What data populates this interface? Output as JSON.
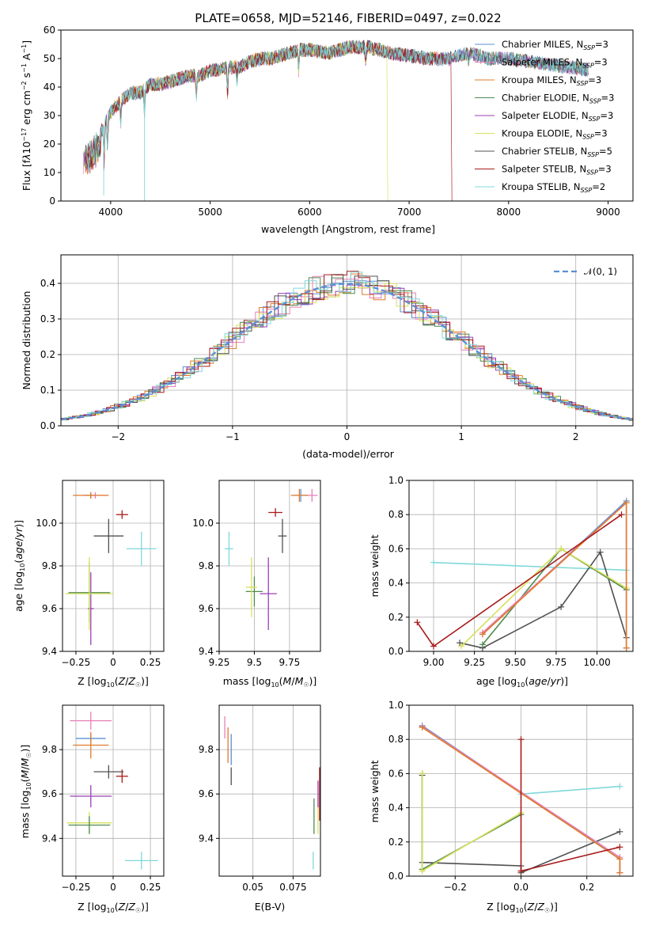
{
  "colors": {
    "chabrier_miles": "#5b8fd6",
    "salpeter_miles": "#e87fb8",
    "kroupa_miles": "#e07b2a",
    "chabrier_elodie": "#4f8a4f",
    "salpeter_elodie": "#9a3fb5",
    "kroupa_elodie": "#d8e05a",
    "chabrier_stelib": "#505050",
    "salpeter_stelib": "#a81a1a",
    "kroupa_stelib": "#80d8da",
    "normal": "#5b8fd6"
  },
  "chart_data": [
    {
      "type": "line",
      "title": "PLATE=0658, MJD=52146, FIBERID=0497, z=0.022",
      "xlabel": "wavelength [Angstrom, rest frame]",
      "ylabel": "Flux [f_λ 10^-17 erg cm^-2 s^-1 A^-1]",
      "xlim": [
        3500,
        9250
      ],
      "ylim": [
        0,
        60
      ],
      "xticks": [
        4000,
        5000,
        6000,
        7000,
        8000,
        9000
      ],
      "yticks": [
        0,
        10,
        20,
        30,
        40,
        50,
        60
      ],
      "legend_position": "top-right",
      "spectrum_anchor": {
        "x": [
          3720,
          3800,
          3850,
          3900,
          3950,
          4000,
          4100,
          4200,
          4300,
          4400,
          4500,
          4600,
          4700,
          4800,
          4900,
          5000,
          5100,
          5200,
          5300,
          5400,
          5500,
          5600,
          5700,
          5800,
          5900,
          6000,
          6200,
          6400,
          6600,
          6800,
          7000,
          7200,
          7400,
          7600,
          7800,
          8000,
          8200,
          8400,
          8600,
          8800
        ],
        "y": [
          17,
          20,
          22,
          24,
          28,
          31,
          35,
          38,
          38,
          41,
          41,
          42,
          43,
          44,
          44,
          46,
          46,
          47,
          47,
          49,
          50,
          50,
          51,
          52,
          53,
          53,
          52,
          54,
          54,
          52,
          51,
          50,
          50,
          52,
          50,
          50,
          49,
          48,
          47,
          46
        ]
      },
      "series": [
        {
          "name": "Chabrier MILES, N",
          "sub": "SSP",
          "suffix": "=3",
          "color_key": "chabrier_miles"
        },
        {
          "name": "Salpeter MILES, N",
          "sub": "SSP",
          "suffix": "=3",
          "color_key": "salpeter_miles"
        },
        {
          "name": "Kroupa MILES, N",
          "sub": "SSP",
          "suffix": "=3",
          "color_key": "kroupa_miles"
        },
        {
          "name": "Chabrier ELODIE, N",
          "sub": "SSP",
          "suffix": "=3",
          "color_key": "chabrier_elodie"
        },
        {
          "name": "Salpeter ELODIE, N",
          "sub": "SSP",
          "suffix": "=3",
          "color_key": "salpeter_elodie"
        },
        {
          "name": "Kroupa ELODIE, N",
          "sub": "SSP",
          "suffix": "=3",
          "color_key": "kroupa_elodie"
        },
        {
          "name": "Chabrier STELIB, N",
          "sub": "SSP",
          "suffix": "=5",
          "color_key": "chabrier_stelib"
        },
        {
          "name": "Salpeter STELIB, N",
          "sub": "SSP",
          "suffix": "=3",
          "color_key": "salpeter_stelib"
        },
        {
          "name": "Kroupa STELIB, N",
          "sub": "SSP",
          "suffix": "=2",
          "color_key": "kroupa_stelib"
        }
      ]
    },
    {
      "type": "histogram",
      "xlabel": "(data-model)/error",
      "ylabel": "Normed distribution",
      "xlim": [
        -2.5,
        2.5
      ],
      "ylim": [
        0,
        0.48
      ],
      "xticks": [
        -2,
        -1,
        0,
        1,
        2
      ],
      "yticks": [
        0.0,
        0.1,
        0.2,
        0.3,
        0.4
      ],
      "grid": true,
      "legend": "𝒩(0, 1)",
      "legend_position": "top-right",
      "bin_width": 0.1,
      "reference_curve": "normal(0,1)"
    },
    {
      "type": "errorbar",
      "xlabel": "Z [log10(Z/Z☉)]",
      "ylabel": "age [log10(age/yr)]",
      "xlim": [
        -0.34,
        0.34
      ],
      "ylim": [
        9.4,
        10.2
      ],
      "xticks": [
        -0.25,
        0.0,
        0.25
      ],
      "yticks": [
        9.4,
        9.6,
        9.8,
        10.0
      ],
      "points": [
        {
          "color_key": "chabrier_miles",
          "x": -0.15,
          "xerr": 0.04,
          "y": 10.13,
          "yerr": 0.015
        },
        {
          "color_key": "salpeter_miles",
          "x": -0.12,
          "xerr": 0.08,
          "y": 10.13,
          "yerr": 0.015
        },
        {
          "color_key": "kroupa_miles",
          "x": -0.15,
          "xerr": 0.12,
          "y": 10.13,
          "yerr": 0.015
        },
        {
          "color_key": "salpeter_elodie",
          "x": -0.15,
          "xerr": 0.02,
          "y": 9.6,
          "yerr": 0.17
        },
        {
          "color_key": "chabrier_elodie",
          "x": -0.16,
          "xerr": 0.14,
          "y": 9.675,
          "yerr": 0.14
        },
        {
          "color_key": "kroupa_elodie",
          "x": -0.16,
          "xerr": 0.16,
          "y": 9.67,
          "yerr": 0.17
        },
        {
          "color_key": "chabrier_stelib",
          "x": -0.03,
          "xerr": 0.1,
          "y": 9.94,
          "yerr": 0.08
        },
        {
          "color_key": "salpeter_stelib",
          "x": 0.06,
          "xerr": 0.04,
          "y": 10.04,
          "yerr": 0.02
        },
        {
          "color_key": "kroupa_stelib",
          "x": 0.19,
          "xerr": 0.1,
          "y": 9.88,
          "yerr": 0.08
        }
      ]
    },
    {
      "type": "errorbar",
      "xlabel": "mass [log10(M/M☉)]",
      "xlim": [
        9.25,
        9.97
      ],
      "ylim": [
        9.4,
        10.2
      ],
      "xticks": [
        9.25,
        9.5,
        9.75
      ],
      "yticks": [
        9.4,
        9.6,
        9.8,
        10.0
      ],
      "points": [
        {
          "color_key": "chabrier_miles",
          "x": 9.83,
          "xerr": 0.05,
          "y": 10.13,
          "yerr": 0.03
        },
        {
          "color_key": "salpeter_miles",
          "x": 9.91,
          "xerr": 0.04,
          "y": 10.13,
          "yerr": 0.03
        },
        {
          "color_key": "kroupa_miles",
          "x": 9.82,
          "xerr": 0.06,
          "y": 10.13,
          "yerr": 0.03
        },
        {
          "color_key": "salpeter_elodie",
          "x": 9.6,
          "xerr": 0.06,
          "y": 9.67,
          "yerr": 0.17
        },
        {
          "color_key": "chabrier_elodie",
          "x": 9.5,
          "xerr": 0.06,
          "y": 9.68,
          "yerr": 0.07
        },
        {
          "color_key": "kroupa_elodie",
          "x": 9.48,
          "xerr": 0.04,
          "y": 9.7,
          "yerr": 0.14
        },
        {
          "color_key": "chabrier_stelib",
          "x": 9.7,
          "xerr": 0.03,
          "y": 9.94,
          "yerr": 0.08
        },
        {
          "color_key": "salpeter_stelib",
          "x": 9.65,
          "xerr": 0.05,
          "y": 10.05,
          "yerr": 0.02
        },
        {
          "color_key": "kroupa_stelib",
          "x": 9.32,
          "xerr": 0.03,
          "y": 9.88,
          "yerr": 0.08
        }
      ]
    },
    {
      "type": "line",
      "xlabel": "age [log10(age/yr)]",
      "ylabel": "mass weight",
      "xlim": [
        8.85,
        10.22
      ],
      "ylim": [
        0,
        1
      ],
      "xticks": [
        9.0,
        9.25,
        9.5,
        9.75,
        10.0
      ],
      "yticks": [
        0.0,
        0.2,
        0.4,
        0.6,
        0.8,
        1.0
      ],
      "grid": true,
      "series": [
        {
          "color_key": "kroupa_stelib",
          "x": [
            9.0,
            10.18
          ],
          "y": [
            0.52,
            0.475
          ]
        },
        {
          "color_key": "chabrier_stelib",
          "x": [
            9.16,
            9.3,
            9.78,
            10.02,
            10.18
          ],
          "y": [
            0.05,
            0.02,
            0.26,
            0.58,
            0.08
          ]
        },
        {
          "color_key": "chabrier_elodie",
          "x": [
            9.3,
            9.78,
            10.18
          ],
          "y": [
            0.04,
            0.6,
            0.36
          ]
        },
        {
          "color_key": "kroupa_elodie",
          "x": [
            9.17,
            9.78,
            10.18
          ],
          "y": [
            0.03,
            0.6,
            0.37
          ]
        },
        {
          "color_key": "chabrier_miles",
          "x": [
            9.3,
            10.18,
            10.18
          ],
          "y": [
            0.1,
            0.88,
            0.02
          ]
        },
        {
          "color_key": "salpeter_miles",
          "x": [
            9.3,
            10.18,
            10.18
          ],
          "y": [
            0.11,
            0.87,
            0.02
          ]
        },
        {
          "color_key": "kroupa_miles",
          "x": [
            9.3,
            10.18,
            10.18
          ],
          "y": [
            0.1,
            0.87,
            0.02
          ]
        },
        {
          "color_key": "salpeter_stelib",
          "x": [
            8.9,
            9.0,
            10.15
          ],
          "y": [
            0.17,
            0.03,
            0.8
          ]
        }
      ]
    },
    {
      "type": "errorbar",
      "xlabel": "Z [log10(Z/Z☉)]",
      "ylabel": "mass [log10(M/M☉)]",
      "xlim": [
        -0.34,
        0.34
      ],
      "ylim": [
        9.23,
        10.0
      ],
      "xticks": [
        -0.25,
        0.0,
        0.25
      ],
      "yticks": [
        9.4,
        9.6,
        9.8
      ],
      "points": [
        {
          "color_key": "salpeter_miles",
          "x": -0.15,
          "xerr": 0.14,
          "y": 9.93,
          "yerr": 0.04
        },
        {
          "color_key": "chabrier_miles",
          "x": -0.15,
          "xerr": 0.1,
          "y": 9.85,
          "yerr": 0.02
        },
        {
          "color_key": "kroupa_miles",
          "x": -0.15,
          "xerr": 0.12,
          "y": 9.82,
          "yerr": 0.06
        },
        {
          "color_key": "chabrier_stelib",
          "x": -0.03,
          "xerr": 0.1,
          "y": 9.7,
          "yerr": 0.03
        },
        {
          "color_key": "salpeter_stelib",
          "x": 0.06,
          "xerr": 0.04,
          "y": 9.68,
          "yerr": 0.03
        },
        {
          "color_key": "salpeter_elodie",
          "x": -0.15,
          "xerr": 0.14,
          "y": 9.59,
          "yerr": 0.05
        },
        {
          "color_key": "kroupa_elodie",
          "x": -0.16,
          "xerr": 0.15,
          "y": 9.47,
          "yerr": 0.05
        },
        {
          "color_key": "chabrier_elodie",
          "x": -0.16,
          "xerr": 0.14,
          "y": 9.46,
          "yerr": 0.04
        },
        {
          "color_key": "kroupa_stelib",
          "x": 0.19,
          "xerr": 0.11,
          "y": 9.3,
          "yerr": 0.04
        }
      ]
    },
    {
      "type": "errorbar",
      "xlabel": "E(B-V)",
      "xlim": [
        0.029,
        0.092
      ],
      "ylim": [
        9.23,
        10.0
      ],
      "xticks": [
        0.05,
        0.075
      ],
      "yticks": [
        9.4,
        9.6,
        9.8
      ],
      "points": [
        {
          "color_key": "salpeter_miles",
          "x": 0.0325,
          "xerr": 0.0,
          "y": 9.9,
          "yerr": 0.05
        },
        {
          "color_key": "kroupa_miles",
          "x": 0.0345,
          "xerr": 0.0,
          "y": 9.82,
          "yerr": 0.08
        },
        {
          "color_key": "chabrier_miles",
          "x": 0.0365,
          "xerr": 0.0,
          "y": 9.8,
          "yerr": 0.07
        },
        {
          "color_key": "chabrier_stelib",
          "x": 0.0365,
          "xerr": 0.0,
          "y": 9.68,
          "yerr": 0.04
        },
        {
          "color_key": "kroupa_stelib",
          "x": 0.0875,
          "xerr": 0.0,
          "y": 9.3,
          "yerr": 0.04
        },
        {
          "color_key": "chabrier_elodie",
          "x": 0.088,
          "xerr": 0.0,
          "y": 9.5,
          "yerr": 0.08
        },
        {
          "color_key": "kroupa_elodie",
          "x": 0.0905,
          "xerr": 0.0,
          "y": 9.5,
          "yerr": 0.08
        },
        {
          "color_key": "salpeter_elodie",
          "x": 0.0905,
          "xerr": 0.0,
          "y": 9.6,
          "yerr": 0.06
        },
        {
          "color_key": "salpeter_stelib",
          "x": 0.0915,
          "xerr": 0.0,
          "y": 9.6,
          "yerr": 0.12
        }
      ]
    },
    {
      "type": "line",
      "xlabel": "Z [log10(Z/Z☉)]",
      "ylabel": "mass weight",
      "xlim": [
        -0.34,
        0.34
      ],
      "ylim": [
        0,
        1
      ],
      "xticks": [
        -0.2,
        0.0,
        0.2
      ],
      "yticks": [
        0.0,
        0.2,
        0.4,
        0.6,
        0.8,
        1.0
      ],
      "grid": true,
      "series": [
        {
          "color_key": "kroupa_stelib",
          "x": [
            0.0,
            0.3
          ],
          "y": [
            0.48,
            0.525
          ]
        },
        {
          "color_key": "chabrier_stelib",
          "x": [
            -0.3,
            -0.3,
            0.0,
            0.0,
            0.3
          ],
          "y": [
            0.59,
            0.08,
            0.06,
            0.02,
            0.26
          ]
        },
        {
          "color_key": "chabrier_elodie",
          "x": [
            -0.3,
            -0.3,
            0.0
          ],
          "y": [
            0.6,
            0.04,
            0.36
          ]
        },
        {
          "color_key": "kroupa_elodie",
          "x": [
            -0.3,
            -0.3,
            0.0
          ],
          "y": [
            0.6,
            0.03,
            0.37
          ]
        },
        {
          "color_key": "chabrier_miles",
          "x": [
            -0.3,
            0.3,
            0.3
          ],
          "y": [
            0.88,
            0.1,
            0.02
          ]
        },
        {
          "color_key": "salpeter_miles",
          "x": [
            -0.3,
            0.3,
            0.3
          ],
          "y": [
            0.875,
            0.11,
            0.02
          ]
        },
        {
          "color_key": "kroupa_miles",
          "x": [
            -0.3,
            0.3,
            0.3
          ],
          "y": [
            0.87,
            0.1,
            0.02
          ]
        },
        {
          "color_key": "salpeter_stelib",
          "x": [
            0.0,
            0.0,
            0.0,
            0.3
          ],
          "y": [
            0.8,
            0.03,
            0.03,
            0.17
          ]
        }
      ]
    }
  ]
}
